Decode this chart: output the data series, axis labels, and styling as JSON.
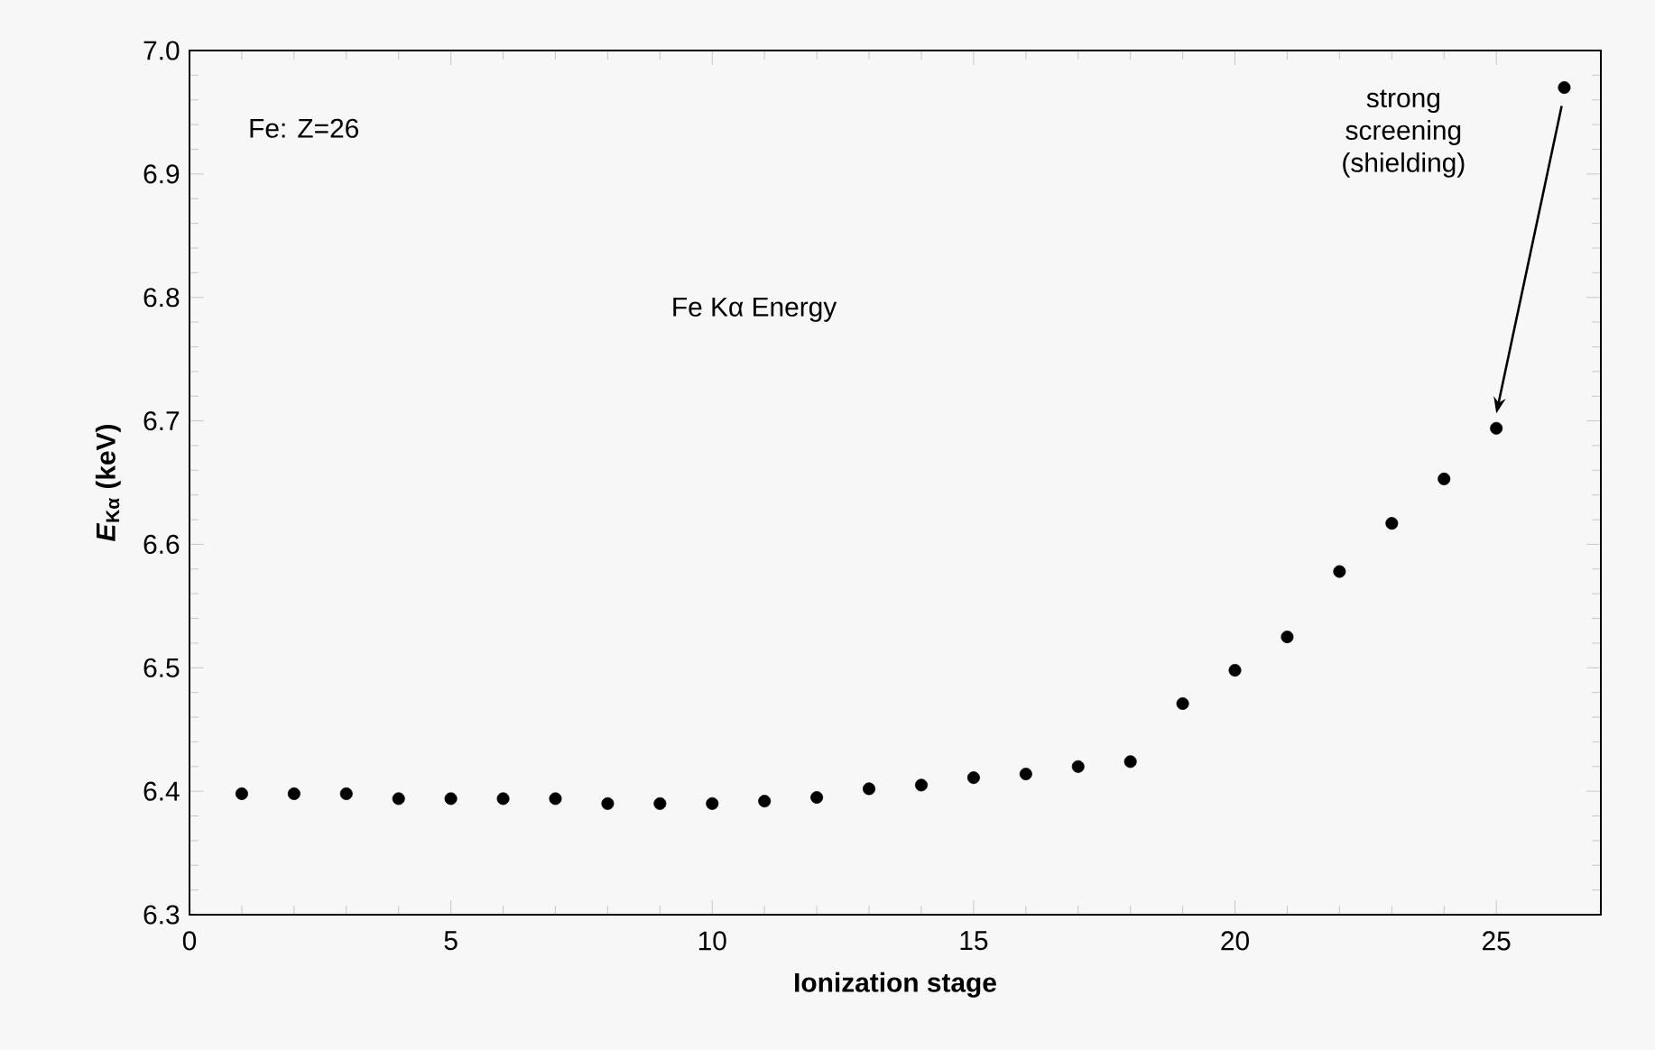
{
  "chart_data": {
    "type": "scatter",
    "xlabel": "Ionization stage",
    "ylabel": "*E*$_{Kα}$ (keV)",
    "x": [
      1,
      2,
      3,
      4,
      5,
      6,
      7,
      8,
      9,
      10,
      11,
      12,
      13,
      14,
      15,
      16,
      17,
      18,
      19,
      20,
      21,
      22,
      23,
      24,
      25,
      26.3
    ],
    "series": [
      {
        "color": "#000000",
        "values": [
          6.398,
          6.398,
          6.398,
          6.394,
          6.394,
          6.394,
          6.394,
          6.39,
          6.39,
          6.39,
          6.392,
          6.395,
          6.402,
          6.405,
          6.411,
          6.414,
          6.42,
          6.424,
          6.471,
          6.498,
          6.525,
          6.578,
          6.617,
          6.653,
          6.694,
          6.97
        ]
      }
    ],
    "xlim": [
      0,
      27
    ],
    "ylim": [
      6.3,
      7.0
    ],
    "xticks": [
      0,
      5,
      10,
      15,
      20,
      25
    ],
    "yticks": [
      {
        "value": 6.3,
        "label": "6.3"
      },
      {
        "value": 6.4,
        "label": "6.4"
      },
      {
        "value": 6.5,
        "label": "6.5"
      },
      {
        "value": 6.6,
        "label": "6.6"
      },
      {
        "value": 6.7,
        "label": "6.7"
      },
      {
        "value": 6.8,
        "label": "6.8"
      },
      {
        "value": 6.9,
        "label": "6.9"
      },
      {
        "value": 7.0,
        "label": "7.0"
      }
    ],
    "marker": "circle",
    "grid": false,
    "annotations": [
      "Fe: Z=26",
      "Fe Kα Energy",
      "strong screening (shielding)"
    ]
  }
}
